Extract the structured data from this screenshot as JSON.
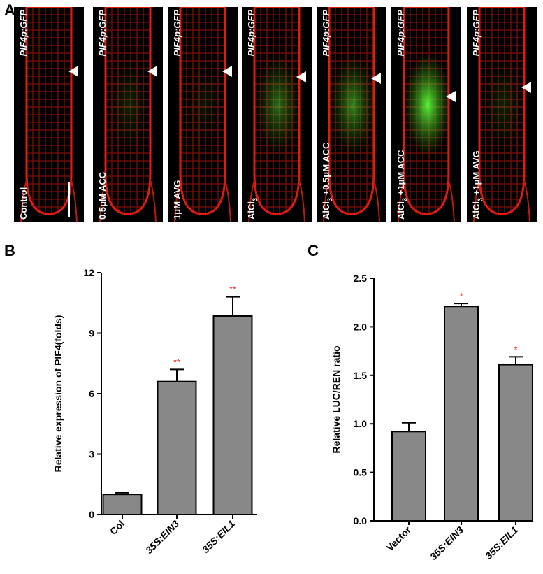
{
  "panel_labels": [
    "A",
    "B",
    "C"
  ],
  "panel_a": {
    "images": [
      {
        "construct": "PIF4p:GFP",
        "treatment": [
          "Control"
        ]
      },
      {
        "construct": "PIF4p:GFP",
        "treatment": [
          "0.5μM ACC"
        ]
      },
      {
        "construct": "PIF4p:GFP",
        "treatment": [
          "1μM AVG"
        ]
      },
      {
        "construct": "PIF4p:GFP",
        "treatment": [
          "AlCl",
          "3"
        ]
      },
      {
        "construct": "PIF4p:GFP",
        "treatment": [
          "AlCl",
          "3",
          " +0.5μM ACC"
        ]
      },
      {
        "construct": "PIF4p:GFP",
        "treatment": [
          "AlCl",
          "3",
          " +1μM ACC"
        ]
      },
      {
        "construct": "PIF4p:GFP",
        "treatment": [
          "AlCl",
          "3",
          " +1μM AVG"
        ]
      }
    ]
  },
  "chart_data": [
    {
      "type": "bar",
      "y_label": "Relative expression of PIF4(folds)",
      "categories": [
        "Col",
        "35S:EIN3",
        "35S:EIL1"
      ],
      "values": [
        1.0,
        6.6,
        9.85
      ],
      "errors": [
        0.08,
        0.6,
        0.95
      ],
      "significance": [
        null,
        "**",
        "**"
      ],
      "color": "#888888",
      "ylim": [
        0,
        12
      ],
      "yticks": [
        0,
        3,
        6,
        9,
        12
      ]
    },
    {
      "type": "bar",
      "y_label": "Relative LUC/REN ratio",
      "categories": [
        "Vector",
        "35S:EIN3",
        "35S:EIL1"
      ],
      "values": [
        0.92,
        2.21,
        1.61
      ],
      "errors": [
        0.09,
        0.03,
        0.08
      ],
      "significance": [
        null,
        "*",
        "*"
      ],
      "color": "#888888",
      "ylim": [
        0,
        2.5
      ],
      "yticks": [
        {
          "value": 0,
          "label": "0.0"
        },
        {
          "value": 0.5,
          "label": "0.5"
        },
        {
          "value": 1,
          "label": "1.0"
        },
        {
          "value": 1.5,
          "label": "1.5"
        },
        {
          "value": 2,
          "label": "2.0"
        },
        {
          "value": 2.5,
          "label": "2.5"
        }
      ]
    }
  ]
}
